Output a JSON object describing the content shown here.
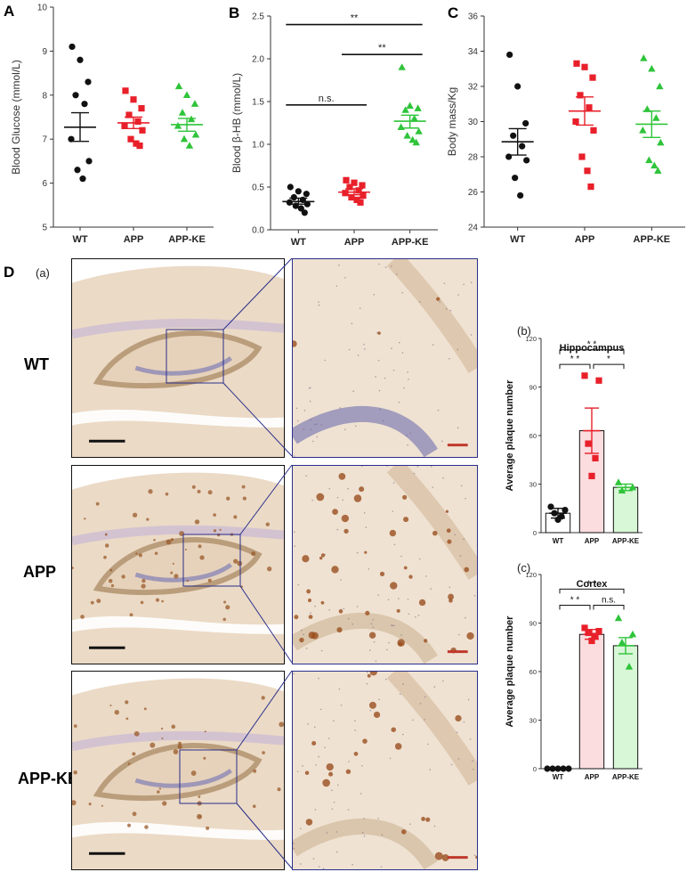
{
  "panels": {
    "A": "A",
    "B": "B",
    "C": "C",
    "D": "D",
    "sub_a": "(a)",
    "sub_b": "(b)",
    "sub_c": "(c)"
  },
  "rows": [
    "WT",
    "APP",
    "APP-KE"
  ],
  "colors": {
    "WT": "#111111",
    "APP": "#e8202a",
    "APP-KE": "#2fc43a",
    "bar_APP_fill": "#fbdcdf",
    "bar_APP_KE_fill": "#d8f7d6",
    "tissue": "#e3cdb4",
    "frame": "#2a2f8a",
    "scale_red": "#c0392b"
  },
  "chart_data": [
    {
      "id": "A",
      "type": "scatter",
      "categories": [
        "WT",
        "APP",
        "APP-KE"
      ],
      "ylabel": "Blood Glucose (mmol/L)",
      "ylim": [
        5,
        10
      ],
      "yticks": [
        5,
        6,
        7,
        8,
        9,
        10
      ],
      "markers": [
        "circle",
        "square",
        "triangle"
      ],
      "series": [
        {
          "category": "WT",
          "points": [
            9.1,
            8.8,
            8.3,
            8.0,
            7.8,
            7.0,
            6.5,
            6.3,
            6.1
          ],
          "mean": 7.27,
          "sem": [
            6.95,
            7.6
          ]
        },
        {
          "category": "APP",
          "points": [
            8.1,
            7.9,
            7.7,
            7.55,
            7.4,
            7.3,
            7.2,
            7.0,
            6.9,
            6.85
          ],
          "mean": 7.37,
          "sem": [
            7.24,
            7.5
          ]
        },
        {
          "category": "APP-KE",
          "points": [
            8.2,
            8.0,
            7.8,
            7.6,
            7.45,
            7.3,
            7.1,
            7.0,
            6.85
          ],
          "mean": 7.33,
          "sem": [
            7.18,
            7.47
          ]
        }
      ],
      "annotations": []
    },
    {
      "id": "B",
      "type": "scatter",
      "categories": [
        "WT",
        "APP",
        "APP-KE"
      ],
      "ylabel": "Blood β-HB (mmol/L)",
      "ylim": [
        0,
        2.5
      ],
      "yticks": [
        0.0,
        0.5,
        1.0,
        1.5,
        2.0,
        2.5
      ],
      "markers": [
        "circle",
        "square",
        "triangle"
      ],
      "series": [
        {
          "category": "WT",
          "points": [
            0.5,
            0.45,
            0.42,
            0.38,
            0.35,
            0.32,
            0.3,
            0.28,
            0.25,
            0.2
          ],
          "mean": 0.33,
          "sem": [
            0.3,
            0.37
          ]
        },
        {
          "category": "APP",
          "points": [
            0.58,
            0.55,
            0.52,
            0.5,
            0.46,
            0.43,
            0.4,
            0.38,
            0.35,
            0.32
          ],
          "mean": 0.44,
          "sem": [
            0.41,
            0.48
          ]
        },
        {
          "category": "APP-KE",
          "points": [
            1.9,
            1.45,
            1.42,
            1.4,
            1.3,
            1.2,
            1.15,
            1.1,
            1.05,
            1.02
          ],
          "mean": 1.27,
          "sem": [
            1.19,
            1.34
          ]
        }
      ],
      "annotations": [
        {
          "from": "WT",
          "to": "APP",
          "y": 1.46,
          "text": "n.s."
        },
        {
          "from": "APP",
          "to": "APP-KE",
          "y": 2.05,
          "text": "**"
        },
        {
          "from": "WT",
          "to": "APP-KE",
          "y": 2.4,
          "text": "**"
        }
      ]
    },
    {
      "id": "C",
      "type": "scatter",
      "categories": [
        "WT",
        "APP",
        "APP-KE"
      ],
      "ylabel": "Body mass/Kg",
      "ylim": [
        24,
        36
      ],
      "yticks": [
        24,
        26,
        28,
        30,
        32,
        34,
        36
      ],
      "markers": [
        "circle",
        "square",
        "triangle"
      ],
      "series": [
        {
          "category": "WT",
          "points": [
            33.8,
            32.0,
            29.9,
            29.2,
            28.6,
            28.0,
            27.8,
            26.8,
            25.8
          ],
          "mean": 28.85,
          "sem": [
            28.1,
            29.6
          ]
        },
        {
          "category": "APP",
          "points": [
            33.3,
            33.1,
            32.5,
            31.5,
            30.8,
            30.0,
            29.5,
            28.0,
            27.2,
            26.3
          ],
          "mean": 30.6,
          "sem": [
            29.8,
            31.4
          ]
        },
        {
          "category": "APP-KE",
          "points": [
            33.6,
            33.0,
            32.0,
            30.7,
            30.2,
            29.5,
            28.8,
            27.8,
            27.5,
            27.2
          ],
          "mean": 29.85,
          "sem": [
            29.1,
            30.6
          ]
        }
      ],
      "annotations": []
    },
    {
      "id": "Db",
      "type": "bar",
      "title": "Hippocampus",
      "categories": [
        "WT",
        "APP",
        "APP-KE"
      ],
      "ylabel": "Average plaque number",
      "ylim": [
        0,
        120
      ],
      "yticks": [
        0,
        30,
        60,
        90,
        120
      ],
      "values": [
        12,
        63,
        28
      ],
      "sem": [
        3,
        14,
        2
      ],
      "points": [
        [
          16,
          14,
          12,
          10,
          8
        ],
        [
          97,
          94,
          55,
          46,
          35
        ],
        [
          31,
          28,
          26
        ]
      ],
      "annotations": [
        {
          "from": "WT",
          "to": "APP",
          "y": 104,
          "text": "* *"
        },
        {
          "from": "APP",
          "to": "APP-KE",
          "y": 104,
          "text": "*"
        },
        {
          "from": "WT",
          "to": "APP-KE",
          "y": 113,
          "text": "* *"
        }
      ]
    },
    {
      "id": "Dc",
      "type": "bar",
      "title": "Cortex",
      "categories": [
        "WT",
        "APP",
        "APP-KE"
      ],
      "ylabel": "Average plaque number",
      "ylim": [
        0,
        120
      ],
      "yticks": [
        0,
        30,
        60,
        90,
        120
      ],
      "values": [
        0,
        83,
        76
      ],
      "sem": [
        0,
        3,
        5
      ],
      "points": [
        [
          0,
          0,
          0,
          0,
          0
        ],
        [
          87,
          85,
          84,
          82,
          79
        ],
        [
          93,
          83,
          78,
          63
        ]
      ],
      "annotations": [
        {
          "from": "WT",
          "to": "APP",
          "y": 101,
          "text": "* *"
        },
        {
          "from": "APP",
          "to": "APP-KE",
          "y": 101,
          "text": "n.s."
        },
        {
          "from": "WT",
          "to": "APP-KE",
          "y": 111,
          "text": "* *"
        }
      ]
    }
  ]
}
